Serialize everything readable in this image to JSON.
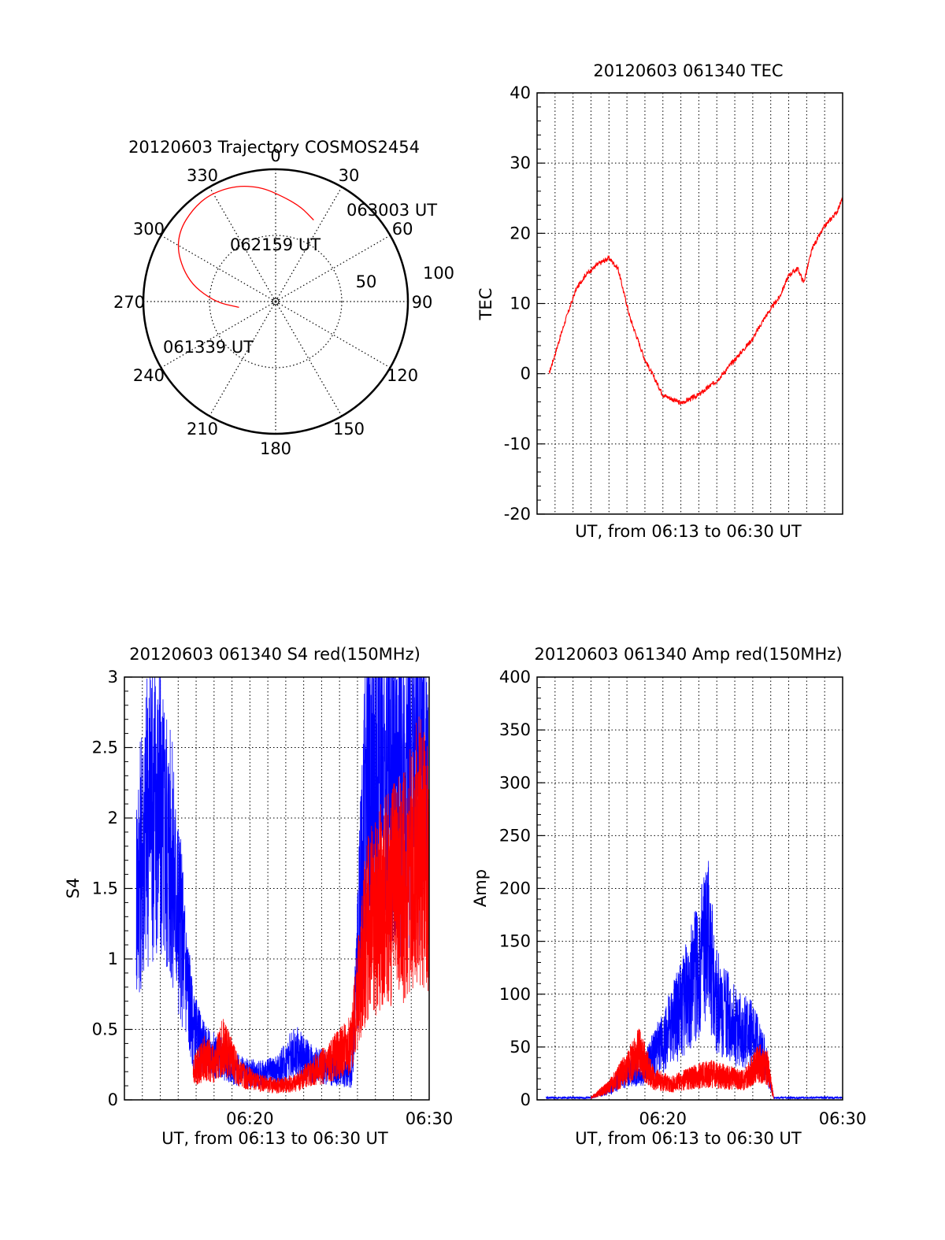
{
  "colors": {
    "series_red": "#ff0000",
    "series_blue": "#0000ff",
    "axis": "#000000"
  },
  "polar": {
    "title": "20120603 Trajectory COSMOS2454",
    "azimuth_labels": [
      "0",
      "30",
      "60",
      "90",
      "120",
      "150",
      "180",
      "210",
      "240",
      "270",
      "300",
      "330"
    ],
    "elevation_labels": [
      "50",
      "100"
    ],
    "annotations": [
      "063003 UT",
      "062159 UT",
      "061339 UT"
    ],
    "trajectory": [
      {
        "az": 261,
        "el": 28,
        "label": "061339 UT"
      },
      {
        "az": 270,
        "el": 47
      },
      {
        "az": 284,
        "el": 70
      },
      {
        "az": 302,
        "el": 90
      },
      {
        "az": 322,
        "el": 96
      },
      {
        "az": 338,
        "el": 94
      },
      {
        "az": 352,
        "el": 88
      },
      {
        "az": 5,
        "el": 79
      },
      {
        "az": 15,
        "el": 74
      },
      {
        "az": 25,
        "el": 68,
        "label": "063003 UT"
      }
    ]
  },
  "chart_data": [
    {
      "type": "line",
      "title": "20120603 061340 TEC",
      "xlabel": "UT, from 06:13 to 06:30 UT",
      "ylabel": "TEC",
      "xlim": [
        "06:13",
        "06:30"
      ],
      "ylim": [
        -20,
        40
      ],
      "y_ticks": [
        "-20",
        "-10",
        "0",
        "10",
        "20",
        "30",
        "40"
      ],
      "grid": true,
      "series": [
        {
          "color": "#ff0000",
          "x": [
            "06:13:40",
            "06:14:30",
            "06:15:10",
            "06:15:40",
            "06:16:20",
            "06:17:00",
            "06:17:30",
            "06:18:10",
            "06:19:00",
            "06:20:00",
            "06:21:00",
            "06:22:00",
            "06:23:00",
            "06:24:00",
            "06:25:00",
            "06:25:40",
            "06:26:30",
            "06:27:00",
            "06:27:30",
            "06:27:50",
            "06:28:20",
            "06:29:00",
            "06:29:40",
            "06:30:00"
          ],
          "y": [
            0,
            7,
            12,
            14,
            15.5,
            16.5,
            15,
            8,
            2,
            -3,
            -4.2,
            -3,
            -1,
            2,
            5,
            8,
            11,
            14,
            15,
            13,
            18,
            21,
            23,
            25
          ]
        }
      ]
    },
    {
      "type": "line",
      "title": "20120603 061340 S4 red(150MHz)",
      "xlabel": "UT, from 06:13 to 06:30 UT",
      "ylabel": "S4",
      "xlim": [
        "06:13",
        "06:30"
      ],
      "ylim": [
        0,
        3
      ],
      "y_ticks": [
        "0",
        "0.5",
        "1",
        "1.5",
        "2",
        "2.5",
        "3"
      ],
      "x_ticks": [
        "06:20",
        "06:30"
      ],
      "grid": true,
      "series": [
        {
          "color": "#0000ff",
          "x": [
            "06:13:40",
            "06:14:30",
            "06:15:30",
            "06:16:10",
            "06:16:50",
            "06:17:30",
            "06:18:30",
            "06:19:30",
            "06:20:30",
            "06:21:30",
            "06:22:30",
            "06:23:30",
            "06:24:30",
            "06:25:10",
            "06:25:40",
            "06:26:30",
            "06:27:30",
            "06:28:30",
            "06:29:30",
            "06:30:00"
          ],
          "y": [
            1.5,
            2.2,
            1.8,
            1.2,
            0.5,
            0.35,
            0.28,
            0.2,
            0.18,
            0.2,
            0.35,
            0.25,
            0.22,
            0.2,
            0.18,
            2.2,
            2.5,
            2.2,
            2.4,
            2.1
          ]
        },
        {
          "color": "#ff0000",
          "x": [
            "06:16:50",
            "06:17:30",
            "06:18:00",
            "06:18:30",
            "06:19:30",
            "06:20:30",
            "06:21:30",
            "06:22:30",
            "06:23:30",
            "06:24:30",
            "06:25:10",
            "06:25:40",
            "06:26:30",
            "06:27:30",
            "06:28:30",
            "06:29:30",
            "06:30:00"
          ],
          "y": [
            0.2,
            0.3,
            0.25,
            0.38,
            0.18,
            0.12,
            0.1,
            0.12,
            0.2,
            0.28,
            0.35,
            0.4,
            1.2,
            1.4,
            1.5,
            1.8,
            1.6
          ]
        }
      ]
    },
    {
      "type": "line",
      "title": "20120603 061340 Amp red(150MHz)",
      "xlabel": "UT, from 06:13 to 06:30 UT",
      "ylabel": "Amp",
      "xlim": [
        "06:13",
        "06:30"
      ],
      "ylim": [
        0,
        400
      ],
      "y_ticks": [
        "0",
        "50",
        "100",
        "150",
        "200",
        "250",
        "300",
        "350",
        "400"
      ],
      "x_ticks": [
        "06:20",
        "06:30"
      ],
      "grid": true,
      "series": [
        {
          "color": "#0000ff",
          "x": [
            "06:13:30",
            "06:16:00",
            "06:17:00",
            "06:18:00",
            "06:19:00",
            "06:20:00",
            "06:21:00",
            "06:22:00",
            "06:22:30",
            "06:23:00",
            "06:24:00",
            "06:25:00",
            "06:25:40",
            "06:26:10",
            "06:27:00",
            "06:30:00"
          ],
          "y": [
            2,
            2,
            10,
            25,
            30,
            55,
            85,
            125,
            150,
            95,
            70,
            60,
            40,
            2,
            2,
            2
          ]
        },
        {
          "color": "#ff0000",
          "x": [
            "06:16:00",
            "06:17:00",
            "06:18:00",
            "06:18:40",
            "06:19:30",
            "06:20:30",
            "06:21:30",
            "06:22:30",
            "06:23:30",
            "06:24:30",
            "06:25:20",
            "06:25:50",
            "06:26:10"
          ],
          "y": [
            2,
            12,
            30,
            45,
            20,
            15,
            20,
            25,
            22,
            18,
            35,
            30,
            2
          ]
        }
      ]
    }
  ]
}
